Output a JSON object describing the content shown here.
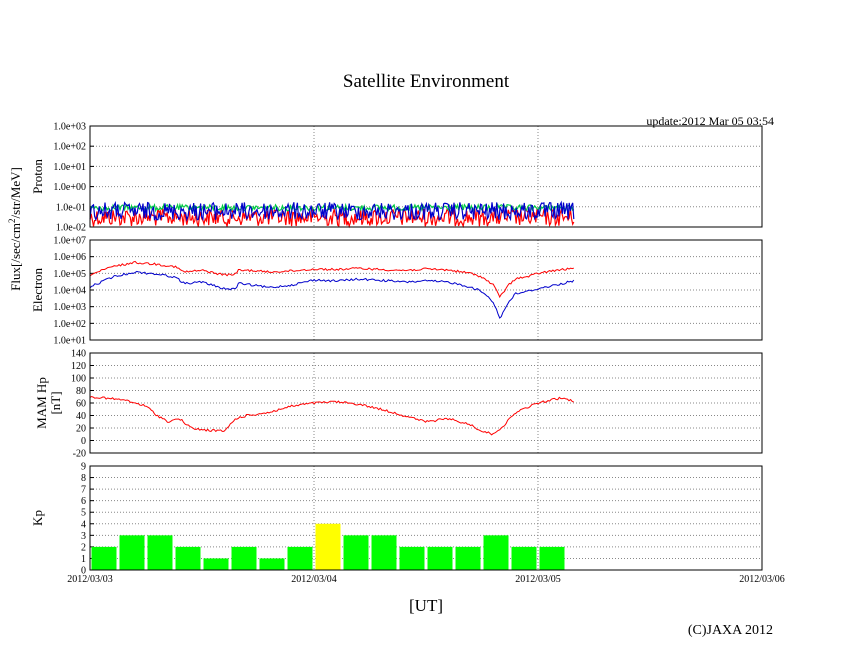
{
  "chart_data": {
    "type": "line",
    "title": "Satellite Environment",
    "update_text": "update:2012 Mar 05 03:54",
    "xlabel": "[UT]",
    "x_ticks": [
      "2012/03/03",
      "2012/03/04",
      "2012/03/05",
      "2012/03/06"
    ],
    "x_range_days": [
      0,
      3
    ],
    "copyright": "(C)JAXA 2012",
    "flux_label": "Flux[/sec/cm2/str/MeV]",
    "panels": [
      {
        "id": "proton",
        "ylabel": "Proton",
        "yscale": "log",
        "ylim": [
          0.01,
          1000
        ],
        "ytick_labels": [
          "1.0e+03",
          "1.0e+02",
          "1.0e+01",
          "1.0e+00",
          "1.0e-01",
          "1.0e-02"
        ],
        "series": [
          {
            "name": "proton-red",
            "color": "#ff0000",
            "times": [
              0,
              0.5,
              1.0,
              1.5,
              2.0,
              2.16
            ],
            "values": [
              0.03,
              0.03,
              0.03,
              0.03,
              0.03,
              0.03
            ]
          },
          {
            "name": "proton-green",
            "color": "#00cc44",
            "times": [
              0,
              0.5,
              1.0,
              1.5,
              2.0,
              2.16
            ],
            "values": [
              0.09,
              0.09,
              0.09,
              0.09,
              0.09,
              0.09
            ]
          },
          {
            "name": "proton-blue",
            "color": "#0000cc",
            "times": [
              0,
              0.5,
              1.0,
              1.5,
              2.0,
              2.16
            ],
            "values": [
              0.06,
              0.06,
              0.06,
              0.06,
              0.06,
              0.06
            ]
          }
        ]
      },
      {
        "id": "electron",
        "ylabel": "Electron",
        "yscale": "log",
        "ylim": [
          10,
          10000000
        ],
        "ytick_labels": [
          "1.0e+07",
          "1.0e+06",
          "1.0e+05",
          "1.0e+04",
          "1.0e+03",
          "1.0e+02",
          "1.0e+01"
        ],
        "series": [
          {
            "name": "electron-red",
            "color": "#ff0000",
            "times": [
              0,
              0.1,
              0.2,
              0.3,
              0.38,
              0.42,
              0.5,
              0.6,
              0.65,
              0.66,
              0.72,
              0.8,
              0.9,
              1.0,
              1.1,
              1.2,
              1.3,
              1.4,
              1.5,
              1.6,
              1.7,
              1.75,
              1.8,
              1.83,
              1.87,
              1.9,
              1.95,
              2.0,
              2.08,
              2.16
            ],
            "values": [
              80000,
              250000,
              450000,
              350000,
              250000,
              120000,
              150000,
              80000,
              90000,
              150000,
              150000,
              120000,
              140000,
              180000,
              170000,
              200000,
              170000,
              150000,
              180000,
              160000,
              100000,
              60000,
              20000,
              4000,
              20000,
              50000,
              60000,
              100000,
              150000,
              200000
            ]
          },
          {
            "name": "electron-blue",
            "color": "#0000cc",
            "times": [
              0,
              0.1,
              0.2,
              0.3,
              0.38,
              0.42,
              0.5,
              0.6,
              0.65,
              0.66,
              0.72,
              0.8,
              0.9,
              1.0,
              1.1,
              1.2,
              1.3,
              1.4,
              1.5,
              1.6,
              1.7,
              1.75,
              1.8,
              1.83,
              1.87,
              1.9,
              1.95,
              2.0,
              2.08,
              2.16
            ],
            "values": [
              15000,
              60000,
              120000,
              90000,
              60000,
              25000,
              30000,
              12000,
              11000,
              25000,
              20000,
              14000,
              20000,
              40000,
              35000,
              45000,
              38000,
              30000,
              35000,
              30000,
              15000,
              8000,
              2000,
              200,
              2000,
              6000,
              8000,
              12000,
              20000,
              35000
            ]
          }
        ]
      },
      {
        "id": "hp",
        "ylabel": "MAM Hp",
        "yunit": "[nT]",
        "yscale": "linear",
        "ylim": [
          -20,
          140
        ],
        "ytick_labels": [
          "140",
          "120",
          "100",
          "80",
          "60",
          "40",
          "20",
          "0",
          "-20"
        ],
        "series": [
          {
            "name": "hp-red",
            "color": "#ff0000",
            "times": [
              0,
              0.15,
              0.25,
              0.3,
              0.35,
              0.4,
              0.45,
              0.5,
              0.6,
              0.65,
              0.7,
              0.8,
              0.9,
              1.0,
              1.1,
              1.2,
              1.3,
              1.4,
              1.45,
              1.5,
              1.6,
              1.65,
              1.7,
              1.75,
              1.8,
              1.85,
              1.9,
              2.0,
              2.1,
              2.16
            ],
            "values": [
              70,
              65,
              55,
              40,
              30,
              35,
              20,
              17,
              15,
              35,
              40,
              45,
              55,
              60,
              62,
              58,
              50,
              40,
              35,
              30,
              35,
              30,
              25,
              15,
              10,
              25,
              45,
              60,
              68,
              63
            ]
          }
        ]
      },
      {
        "id": "kp",
        "ylabel": "Kp",
        "yscale": "linear",
        "ylim": [
          0,
          9
        ],
        "ytick_labels": [
          "9",
          "8",
          "7",
          "6",
          "5",
          "4",
          "3",
          "2",
          "1",
          "0"
        ],
        "bar_colors": {
          "normal": "#00ff00",
          "highlight": "#ffff00"
        },
        "highlight_index": 8,
        "kp_values": [
          2,
          3,
          3,
          2,
          1,
          2,
          1,
          2,
          4,
          3,
          3,
          2,
          2,
          2,
          3,
          2,
          2
        ]
      }
    ]
  }
}
